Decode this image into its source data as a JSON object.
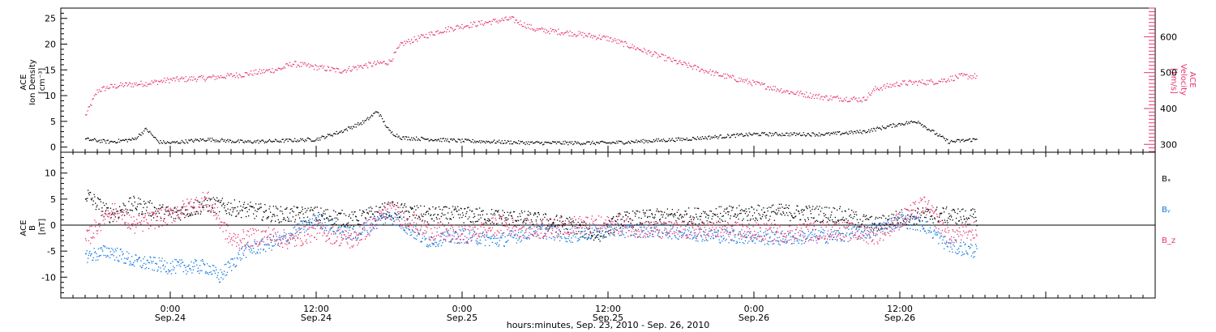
{
  "chart_data": [
    {
      "type": "scatter",
      "panel": "top",
      "ylabel_left": [
        "ACE",
        "Ion Density",
        "[cm⁻³]"
      ],
      "ylabel_right": [
        "ACE",
        "Velocity",
        "[km/s]"
      ],
      "ylim_left": [
        -1,
        27
      ],
      "ylim_right": [
        278,
        680
      ],
      "yticks_left": [
        0,
        5,
        10,
        15,
        20,
        25
      ],
      "yticks_right": [
        300,
        400,
        500,
        600
      ],
      "grid": false,
      "series": [
        {
          "axis": "right",
          "color": "#e8336c",
          "hours": [
            -7,
            -6,
            -5,
            -4,
            -2,
            0,
            3,
            6,
            9,
            10,
            14,
            16,
            18,
            19,
            22,
            24,
            26,
            28,
            30,
            33,
            36,
            39,
            42,
            45,
            48,
            51,
            54,
            57,
            58,
            60,
            63,
            65,
            66.3
          ],
          "values": [
            380,
            450,
            460,
            465,
            470,
            480,
            485,
            495,
            510,
            525,
            505,
            520,
            530,
            580,
            615,
            630,
            640,
            650,
            620,
            610,
            595,
            560,
            525,
            495,
            470,
            445,
            430,
            425,
            455,
            470,
            475,
            490,
            490
          ]
        },
        {
          "axis": "left",
          "color": "#000000",
          "hours": [
            -7,
            -5,
            -3,
            -2,
            -1,
            0,
            3,
            6,
            9,
            12,
            14,
            16,
            17,
            18,
            19,
            24,
            30,
            36,
            42,
            48,
            51,
            54,
            57,
            60,
            61.5,
            62,
            64,
            66.3
          ],
          "values": [
            1.5,
            1,
            1.5,
            3.5,
            1,
            0.8,
            1.5,
            1,
            1.2,
            1.5,
            3,
            5,
            7,
            3,
            1.8,
            1.2,
            0.8,
            0.8,
            1.5,
            2.5,
            2.5,
            2.5,
            3,
            4.5,
            5,
            4,
            1,
            1.5
          ]
        }
      ]
    },
    {
      "type": "scatter",
      "panel": "bottom",
      "ylabel_left": [
        "ACE",
        "B",
        "[nT]"
      ],
      "ylim": [
        -14,
        14
      ],
      "yticks": [
        -10,
        -5,
        0,
        5,
        10
      ],
      "grid": false,
      "zero_line": true,
      "legend_position": "right",
      "series": [
        {
          "name": "Bₓ",
          "color": "#000000",
          "hours": [
            -7,
            -5,
            -3,
            0,
            3,
            6,
            9,
            12,
            15,
            18,
            21,
            24,
            27,
            30,
            33,
            35,
            37,
            40,
            45,
            50,
            55,
            58,
            60,
            63,
            66.3
          ],
          "values": [
            6,
            2,
            4,
            2,
            4,
            3,
            2,
            2,
            1,
            3,
            2,
            2,
            1.5,
            1,
            0,
            -2,
            1,
            1.5,
            2,
            2.5,
            2,
            0,
            1.5,
            2,
            1.5
          ]
        },
        {
          "name": "Bᵧ",
          "color": "#1177dd",
          "hours": [
            -7,
            -5,
            -3,
            0,
            3,
            4,
            6,
            9,
            12,
            15,
            18,
            21,
            24,
            27,
            30,
            33,
            36,
            40,
            45,
            50,
            55,
            58,
            60,
            62,
            64,
            66.3
          ],
          "values": [
            -6,
            -5,
            -7,
            -8,
            -8,
            -10,
            -5,
            -3,
            1,
            -2,
            2,
            -3,
            -2,
            -3,
            -1,
            -2,
            -1,
            -1,
            -2,
            -2.5,
            -2,
            -1,
            1,
            0,
            -4,
            -5
          ]
        },
        {
          "name": "B_z",
          "color": "#e8336c",
          "hours": [
            -7,
            -5,
            -3,
            0,
            3,
            5,
            8,
            10,
            12,
            15,
            18,
            21,
            24,
            27,
            30,
            33,
            36,
            40,
            45,
            50,
            55,
            58,
            60,
            62,
            64,
            66.3
          ],
          "values": [
            -3,
            3,
            0,
            2,
            5,
            -3,
            -2,
            -3,
            -1,
            -3,
            3,
            -1,
            -2,
            0,
            -1,
            0,
            0,
            -1,
            -1,
            -1.5,
            -1,
            -2,
            1,
            4,
            -2,
            -1
          ]
        }
      ]
    }
  ],
  "x_axis": {
    "range_hours": [
      -9,
      81
    ],
    "ticks": [
      {
        "hours": 0,
        "time": "0:00",
        "date": "Sep.24"
      },
      {
        "hours": 12,
        "time": "12:00",
        "date": "Sep.24"
      },
      {
        "hours": 24,
        "time": "0:00",
        "date": "Sep.25"
      },
      {
        "hours": 36,
        "time": "12:00",
        "date": "Sep.25"
      },
      {
        "hours": 48,
        "time": "0:00",
        "date": "Sep.26"
      },
      {
        "hours": 60,
        "time": "12:00",
        "date": "Sep.26"
      }
    ],
    "label": "hours:minutes, Sep. 23, 2010 - Sep. 26, 2010"
  },
  "colors": {
    "velocity_axis": "#e8336c",
    "bx": "#000000",
    "by": "#1177dd",
    "bz": "#e8336c"
  }
}
